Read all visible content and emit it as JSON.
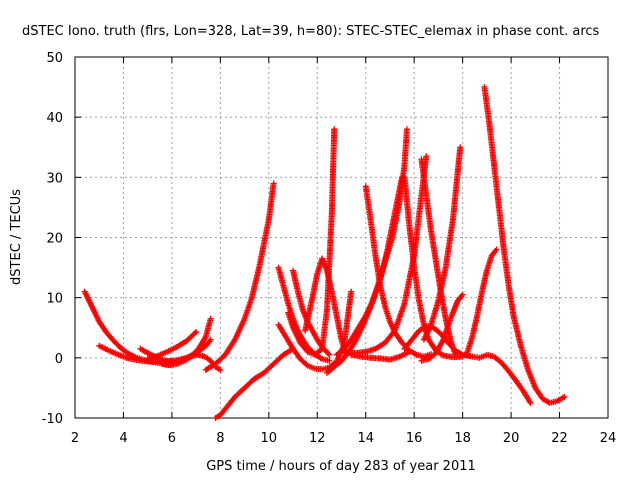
{
  "chart_data": {
    "type": "scatter",
    "title": "dSTEC Iono. truth (flrs, Lon=328, Lat=39, h=80): STEC-STEC_elemax in phase cont. arcs",
    "xlabel": "GPS time / hours of day 283 of year 2011",
    "ylabel": "dSTEC  / TECUs",
    "xlim": [
      2,
      24
    ],
    "ylim": [
      -10,
      50
    ],
    "xticks": [
      2,
      4,
      6,
      8,
      10,
      12,
      14,
      16,
      18,
      20,
      22,
      24
    ],
    "yticks": [
      -10,
      0,
      10,
      20,
      30,
      40,
      50
    ],
    "grid": true,
    "marker": "+",
    "color": "#ff0000",
    "series": [
      {
        "x": [
          2.4,
          2.7,
          3.0,
          3.3,
          3.6,
          3.9,
          4.2,
          4.5,
          4.8,
          5.1,
          5.4,
          5.7,
          6.0
        ],
        "y": [
          11,
          8.5,
          6,
          4.2,
          2.8,
          1.6,
          0.7,
          0.1,
          -0.3,
          -0.6,
          -0.8,
          -1.0,
          -1.0
        ]
      },
      {
        "x": [
          3.0,
          3.4,
          3.8,
          4.2,
          4.6,
          5.0,
          5.4,
          5.8,
          6.2,
          6.6,
          7.0,
          7.4,
          7.6
        ],
        "y": [
          2,
          1.2,
          0.5,
          -0.1,
          -0.4,
          -0.6,
          -0.7,
          -0.6,
          -0.4,
          0,
          0.8,
          2.0,
          3
        ]
      },
      {
        "x": [
          4.7,
          5.0,
          5.3,
          5.6,
          5.9,
          6.2,
          6.5,
          6.8,
          7.1,
          7.4,
          7.6
        ],
        "y": [
          1.5,
          0.8,
          0.2,
          -0.3,
          -0.6,
          -0.6,
          -0.3,
          0.3,
          1.5,
          3.5,
          6.5
        ]
      },
      {
        "x": [
          5.6,
          5.8,
          6.0,
          6.2,
          6.4,
          6.6,
          6.8,
          7.0,
          7.2,
          7.4,
          7.6,
          7.8,
          8.0
        ],
        "y": [
          -1.0,
          -1.2,
          -1.2,
          -1.0,
          -0.7,
          -0.3,
          0.2,
          0.5,
          0.4,
          0.1,
          -0.5,
          -1.5,
          -2.0
        ]
      },
      {
        "x": [
          5.0,
          5.4,
          5.8,
          6.2,
          6.6,
          7.0
        ],
        "y": [
          -0.2,
          0.3,
          1.0,
          1.8,
          2.8,
          4.3
        ]
      },
      {
        "x": [
          7.8,
          8.0,
          8.3,
          8.6,
          9.0,
          9.4,
          9.8,
          10.2,
          10.6,
          11.0
        ],
        "y": [
          -10,
          -9.5,
          -8,
          -6.5,
          -5,
          -3.5,
          -2.5,
          -1.0,
          0.5,
          1.5
        ]
      },
      {
        "x": [
          7.4,
          7.8,
          8.2,
          8.6,
          9.0,
          9.3,
          9.6,
          9.8,
          10.0,
          10.2
        ],
        "y": [
          -2,
          -1,
          0.5,
          3,
          6.5,
          10,
          15,
          19,
          23,
          29
        ]
      },
      {
        "x": [
          10.4,
          10.7,
          11.0,
          11.3,
          11.6,
          11.9,
          12.2,
          12.5,
          12.8,
          13.1,
          13.4
        ],
        "y": [
          5.5,
          3.5,
          1.5,
          -0.2,
          -1.3,
          -1.8,
          -1.9,
          -1.6,
          -0.6,
          2.0,
          11
        ]
      },
      {
        "x": [
          10.4,
          10.6,
          10.8,
          11.0,
          11.2,
          11.4,
          11.6,
          11.9,
          12.2,
          12.5
        ],
        "y": [
          15,
          12,
          9,
          6.5,
          4.5,
          3,
          1.8,
          0.6,
          -0.2,
          -0.5
        ]
      },
      {
        "x": [
          10.8,
          11.0,
          11.3,
          11.6,
          11.9,
          12.2,
          12.4,
          12.6,
          12.7
        ],
        "y": [
          7.5,
          5,
          2.5,
          1,
          0.5,
          1.5,
          8,
          24,
          38
        ]
      },
      {
        "x": [
          11.0,
          11.2,
          11.4,
          11.6,
          11.8,
          12.0,
          12.2,
          12.5
        ],
        "y": [
          14.5,
          11,
          8,
          6,
          4.5,
          3,
          1.8,
          0.5
        ]
      },
      {
        "x": [
          11.5,
          11.8,
          12.0,
          12.2,
          12.4,
          12.6,
          12.8,
          13.0,
          13.2
        ],
        "y": [
          4.5,
          10,
          14,
          16.5,
          14.5,
          11,
          7,
          3,
          0.5
        ]
      },
      {
        "x": [
          12.4,
          12.7,
          13.0,
          13.3,
          13.6,
          13.9,
          14.2,
          14.5,
          14.8,
          15.1,
          15.4,
          15.6,
          15.7
        ],
        "y": [
          -2.5,
          -1.5,
          -0.5,
          1,
          3,
          5.5,
          8.5,
          12,
          16,
          20,
          26,
          32,
          38
        ]
      },
      {
        "x": [
          12.8,
          13.1,
          13.4,
          13.7,
          14.0,
          14.3,
          14.6,
          14.9,
          15.2,
          15.5
        ],
        "y": [
          0.5,
          1.5,
          3,
          5,
          7,
          9.5,
          13,
          18,
          24,
          30
        ]
      },
      {
        "x": [
          13.2,
          13.6,
          14.0,
          14.4,
          14.8,
          15.2,
          15.6,
          16.0,
          16.3,
          16.5
        ],
        "y": [
          0.8,
          0.8,
          1,
          1.5,
          2.5,
          4.5,
          9,
          17,
          27,
          33.5
        ]
      },
      {
        "x": [
          14.0,
          14.2,
          14.4,
          14.6,
          14.8,
          15.0,
          15.2,
          15.5,
          15.8,
          16.1,
          16.4,
          16.7
        ],
        "y": [
          28.5,
          23,
          17,
          12,
          8.5,
          6,
          4.2,
          2.5,
          1.2,
          0.5,
          0.2,
          0.6
        ]
      },
      {
        "x": [
          13.4,
          13.8,
          14.2,
          14.6,
          15.0,
          15.4,
          15.8
        ],
        "y": [
          0.5,
          0.2,
          0,
          -0.1,
          -0.3,
          0.2,
          1.0
        ]
      },
      {
        "x": [
          15.6,
          15.9,
          16.2,
          16.5,
          16.8,
          17.1,
          17.4,
          17.7,
          18.0,
          18.3
        ],
        "y": [
          1.5,
          3,
          4.5,
          5.3,
          5.0,
          4.0,
          2.5,
          1.2,
          0.5,
          0.3
        ]
      },
      {
        "x": [
          15.6,
          15.8,
          16.0,
          16.2,
          16.4,
          16.6,
          16.9,
          17.2,
          17.6,
          18.0
        ],
        "y": [
          30,
          22,
          15,
          9.5,
          5.5,
          3,
          1.2,
          0.4,
          0.1,
          0.2
        ]
      },
      {
        "x": [
          16.3,
          16.5,
          16.7,
          16.9,
          17.1,
          17.3,
          17.5,
          17.7
        ],
        "y": [
          33,
          27,
          21,
          16,
          11,
          6.5,
          3,
          0.5
        ]
      },
      {
        "x": [
          16.3,
          16.6,
          16.9,
          17.2,
          17.5,
          17.8,
          18.0
        ],
        "y": [
          -0.5,
          -0.2,
          0.8,
          3,
          6.5,
          9.5,
          10.5
        ]
      },
      {
        "x": [
          16.4,
          16.7,
          17.0,
          17.3,
          17.6,
          17.9
        ],
        "y": [
          3,
          5.5,
          9.5,
          15,
          23,
          35
        ]
      },
      {
        "x": [
          18.1,
          18.4,
          18.7,
          19.0,
          19.3,
          19.6,
          19.9,
          20.2,
          20.5,
          20.8
        ],
        "y": [
          0.5,
          0.2,
          0,
          0.5,
          0.2,
          -0.8,
          -2.2,
          -3.8,
          -5.5,
          -7.5
        ]
      },
      {
        "x": [
          18.2,
          18.4,
          18.6,
          18.8,
          19.0,
          19.2,
          19.4
        ],
        "y": [
          1,
          3.5,
          7,
          11,
          14.5,
          17,
          18
        ]
      },
      {
        "x": [
          18.9,
          19.1,
          19.3,
          19.5,
          19.7,
          19.9,
          20.1,
          20.4,
          20.7,
          21.0,
          21.3,
          21.6,
          21.9,
          22.2
        ],
        "y": [
          45,
          39,
          32,
          25,
          18,
          12,
          7,
          2,
          -2,
          -5,
          -6.8,
          -7.5,
          -7.2,
          -6.5
        ]
      }
    ]
  }
}
